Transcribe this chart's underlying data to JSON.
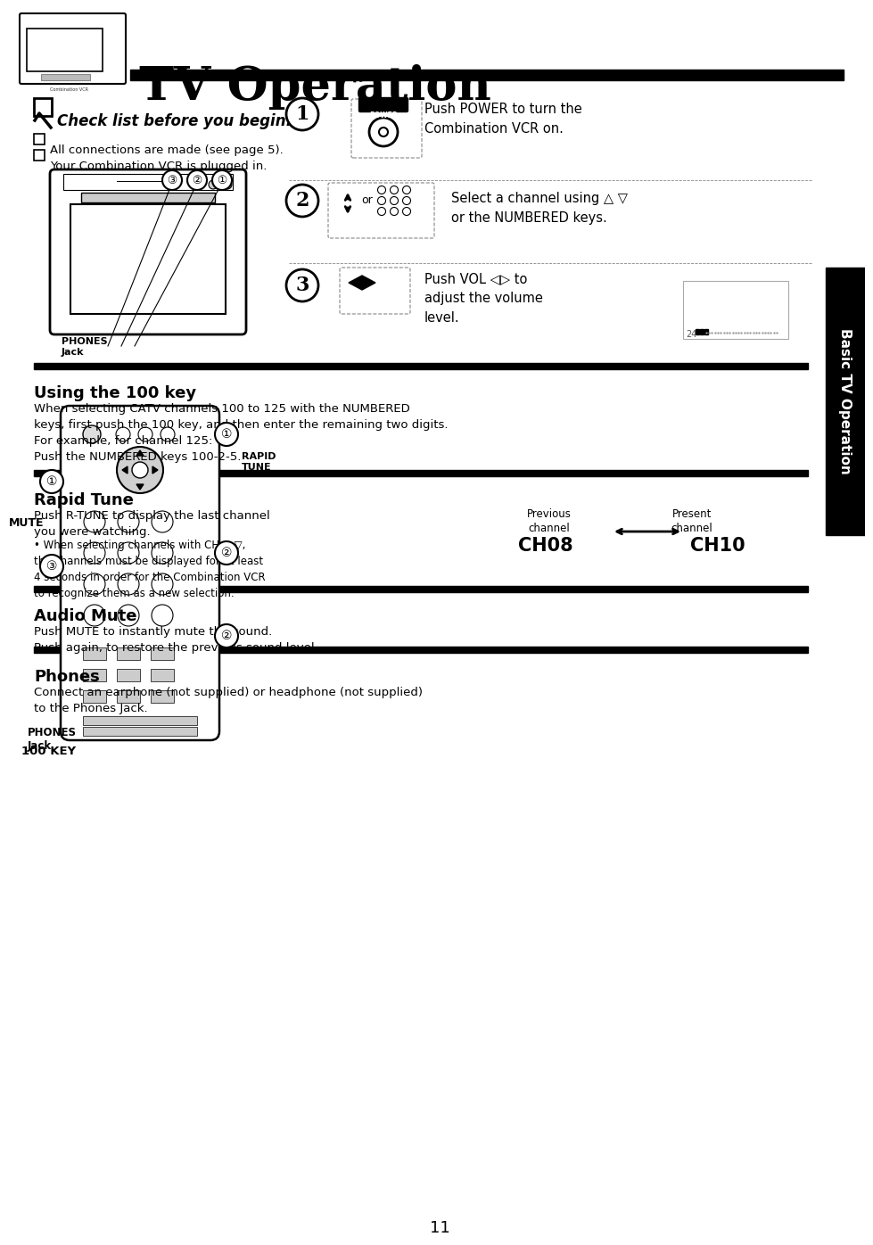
{
  "title": "TV Operation",
  "sidebar_text": "Basic TV Operation",
  "page_number": "11",
  "bg_color": "#ffffff",
  "title_bar_color": "#000000",
  "sidebar_bg": "#000000",
  "sidebar_text_color": "#ffffff",
  "section_bar_color": "#000000",
  "checklist_title": "Check list before you begin.",
  "checklist_items": [
    "All connections are made (see page 5).",
    "Your Combination VCR is plugged in."
  ],
  "steps": [
    {
      "num": "1",
      "text": "Push POWER to turn the\nCombination VCR on."
    },
    {
      "num": "2",
      "text": "Select a channel using △ ▽\nor the NUMBERED keys."
    },
    {
      "num": "3",
      "text": "Push VOL ◁▷ to\nadjust the volume\nlevel."
    }
  ],
  "section_using100": {
    "title": "Using the 100 key",
    "body": "When selecting CATV channels 100 to 125 with the NUMBERED\nkeys, first push the 100 key, and then enter the remaining two digits.\nFor example, for channel 125:\nPush the NUMBERED keys 100-2-5."
  },
  "section_rapidtune": {
    "title": "Rapid Tune",
    "body": "Push R-TUNE to display the last channel\nyou were watching.",
    "bullet": "When selecting channels with CH △ ▽,\nthe channels must be displayed for at least\n4 seconds in order for the Combination VCR\nto recognize them as a new selection.",
    "prev_label": "Previous\nchannel",
    "curr_label": "Present\nchannel",
    "ch_from": "CH08",
    "ch_to": "CH10"
  },
  "section_audiomute": {
    "title": "Audio Mute",
    "body": "Push MUTE to instantly mute the sound.\nPush again, to restore the previous sound level."
  },
  "section_phones": {
    "title": "Phones",
    "body": "Connect an earphone (not supplied) or headphone (not supplied)\nto the Phones Jack."
  },
  "remote_labels": {
    "rapid_tune": "RAPID\nTUNE",
    "mute": "MUTE",
    "phones_jack": "PHONES\nJack",
    "key100": "100 KEY"
  }
}
